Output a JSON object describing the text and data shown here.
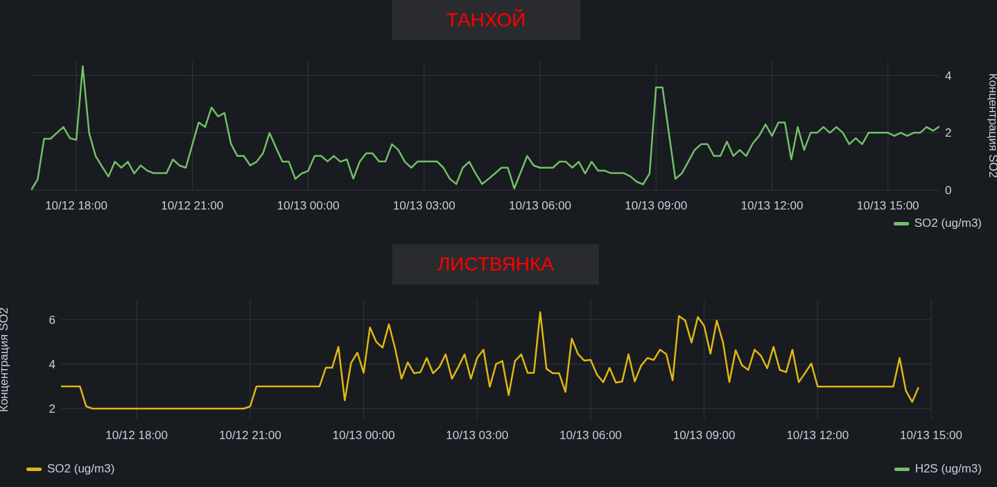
{
  "chart_data": [
    {
      "type": "line",
      "title": "ТАНХОЙ",
      "y2label": "Концентрация SO2",
      "xlim": [
        "--10-12T16:50",
        "--10-13T16:20"
      ],
      "xticks": [
        {
          "value": "--10-12T18:00",
          "label": "10/12 18:00"
        },
        {
          "value": "--10-12T21:00",
          "label": "10/12 21:00"
        },
        {
          "value": "--10-13T00:00",
          "label": "10/13 00:00"
        },
        {
          "value": "--10-13T03:00",
          "label": "10/13 03:00"
        },
        {
          "value": "--10-13T06:00",
          "label": "10/13 06:00"
        },
        {
          "value": "--10-13T09:00",
          "label": "10/13 09:00"
        },
        {
          "value": "--10-13T12:00",
          "label": "10/13 12:00"
        },
        {
          "value": "--10-13T15:00",
          "label": "10/13 15:00"
        }
      ],
      "y2lim": [
        0,
        4.5
      ],
      "y2ticks": [
        0,
        2,
        4
      ],
      "grid": true,
      "legend": "bottom right",
      "series": [
        {
          "name": "SO2 (ug/m3)",
          "color": "#73bf69",
          "axis": "y2",
          "x": [
            "--10-12T16:50",
            "--10-12T17:00",
            "--10-12T17:10",
            "--10-12T17:20",
            "--10-12T17:30",
            "--10-12T17:40",
            "--10-12T17:50",
            "--10-12T18:00",
            "--10-12T18:10",
            "--10-12T18:20",
            "--10-12T18:30",
            "--10-12T18:40",
            "--10-12T18:50",
            "--10-12T19:00",
            "--10-12T19:10",
            "--10-12T19:20",
            "--10-12T19:30",
            "--10-12T19:40",
            "--10-12T19:50",
            "--10-12T20:00",
            "--10-12T20:20",
            "--10-12T20:30",
            "--10-12T20:40",
            "--10-12T20:50",
            "--10-12T21:10",
            "--10-12T21:20",
            "--10-12T21:30",
            "--10-12T21:40",
            "--10-12T21:50",
            "--10-12T22:00",
            "--10-12T22:10",
            "--10-12T22:20",
            "--10-12T22:30",
            "--10-12T22:40",
            "--10-12T22:50",
            "--10-12T23:00",
            "--10-12T23:10",
            "--10-12T23:20",
            "--10-12T23:30",
            "--10-12T23:40",
            "--10-12T23:50",
            "--10-13T00:00",
            "--10-13T00:10",
            "--10-13T00:20",
            "--10-13T00:30",
            "--10-13T00:40",
            "--10-13T00:50",
            "--10-13T01:00",
            "--10-13T01:10",
            "--10-13T01:20",
            "--10-13T01:30",
            "--10-13T01:40",
            "--10-13T01:50",
            "--10-13T02:00",
            "--10-13T02:10",
            "--10-13T02:20",
            "--10-13T02:30",
            "--10-13T02:40",
            "--10-13T02:50",
            "--10-13T03:20",
            "--10-13T03:30",
            "--10-13T03:40",
            "--10-13T03:50",
            "--10-13T04:00",
            "--10-13T04:10",
            "--10-13T04:20",
            "--10-13T04:30",
            "--10-13T04:40",
            "--10-13T04:50",
            "--10-13T05:00",
            "--10-13T05:10",
            "--10-13T05:20",
            "--10-13T05:30",
            "--10-13T05:40",
            "--10-13T05:50",
            "--10-13T06:00",
            "--10-13T06:20",
            "--10-13T06:30",
            "--10-13T06:40",
            "--10-13T06:50",
            "--10-13T07:00",
            "--10-13T07:10",
            "--10-13T07:20",
            "--10-13T07:30",
            "--10-13T07:40",
            "--10-13T07:50",
            "--10-13T08:10",
            "--10-13T08:20",
            "--10-13T08:30",
            "--10-13T08:40",
            "--10-13T08:50",
            "--10-13T09:00",
            "--10-13T09:10",
            "--10-13T09:30",
            "--10-13T09:40",
            "--10-13T09:50",
            "--10-13T10:00",
            "--10-13T10:10",
            "--10-13T10:20",
            "--10-13T10:30",
            "--10-13T10:40",
            "--10-13T10:50",
            "--10-13T11:00",
            "--10-13T11:10",
            "--10-13T11:20",
            "--10-13T11:30",
            "--10-13T11:40",
            "--10-13T11:50",
            "--10-13T12:00",
            "--10-13T12:10",
            "--10-13T12:20",
            "--10-13T12:30",
            "--10-13T12:40",
            "--10-13T12:50",
            "--10-13T13:00",
            "--10-13T13:10",
            "--10-13T13:20",
            "--10-13T13:30",
            "--10-13T13:40",
            "--10-13T13:50",
            "--10-13T14:00",
            "--10-13T14:10",
            "--10-13T14:20",
            "--10-13T14:30",
            "--10-13T15:00",
            "--10-13T15:10",
            "--10-13T15:20",
            "--10-13T15:30",
            "--10-13T15:40",
            "--10-13T15:50",
            "--10-13T16:00",
            "--10-13T16:10",
            "--10-13T16:20"
          ],
          "values": [
            0,
            0.37,
            1.79,
            1.79,
            2.0,
            2.2,
            1.81,
            1.75,
            4.32,
            1.98,
            1.19,
            0.82,
            0.47,
            0.99,
            0.78,
            0.99,
            0.58,
            0.86,
            0.68,
            0.59,
            0.59,
            1.07,
            0.86,
            0.78,
            2.36,
            2.2,
            2.88,
            2.57,
            2.69,
            1.62,
            1.19,
            1.19,
            0.86,
            0.99,
            1.29,
            1.99,
            1.48,
            0.99,
            0.99,
            0.39,
            0.58,
            0.67,
            1.19,
            1.19,
            1.0,
            1.19,
            0.99,
            1.07,
            0.4,
            0.99,
            1.28,
            1.28,
            1.0,
            1.0,
            1.6,
            1.4,
            0.99,
            0.78,
            1.0,
            1.0,
            0.78,
            0.39,
            0.21,
            0.78,
            0.99,
            0.58,
            0.21,
            0.39,
            0.58,
            0.78,
            0.78,
            0.06,
            0.63,
            1.19,
            0.86,
            0.78,
            0.78,
            0.99,
            0.99,
            0.78,
            0.99,
            0.58,
            0.99,
            0.68,
            0.68,
            0.59,
            0.59,
            0.48,
            0.29,
            0.2,
            0.58,
            3.58,
            3.58,
            0.39,
            0.58,
            0.99,
            1.4,
            1.6,
            1.6,
            1.19,
            1.19,
            1.69,
            1.19,
            1.4,
            1.19,
            1.62,
            1.89,
            2.29,
            1.89,
            2.36,
            2.36,
            1.07,
            2.2,
            1.4,
            2.0,
            2.0,
            2.2,
            2.0,
            2.2,
            2.0,
            1.6,
            1.81,
            1.6,
            2.0,
            2.0,
            1.89,
            2.0,
            1.89,
            2.0,
            2.0,
            2.2,
            2.07,
            2.22
          ]
        }
      ]
    },
    {
      "type": "line",
      "title": "ЛИСТВЯНКА",
      "ylabel": "Концентрация SO2",
      "xlim": [
        "--10-12T16:00",
        "--10-13T15:00"
      ],
      "xticks": [
        {
          "value": "--10-12T18:00",
          "label": "10/12 18:00"
        },
        {
          "value": "--10-12T21:00",
          "label": "10/12 21:00"
        },
        {
          "value": "--10-13T00:00",
          "label": "10/13 00:00"
        },
        {
          "value": "--10-13T03:00",
          "label": "10/13 03:00"
        },
        {
          "value": "--10-13T06:00",
          "label": "10/13 06:00"
        },
        {
          "value": "--10-13T09:00",
          "label": "10/13 09:00"
        },
        {
          "value": "--10-13T12:00",
          "label": "10/13 12:00"
        },
        {
          "value": "--10-13T15:00",
          "label": "10/13 15:00"
        }
      ],
      "ylim": [
        1.5,
        6.9
      ],
      "yticks": [
        2,
        4,
        6
      ],
      "grid": true,
      "legend": "bottom",
      "series": [
        {
          "name": "SO2 (ug/m3)",
          "color": "#e0b714",
          "x": [
            "--10-12T16:00",
            "--10-12T16:30",
            "--10-12T16:40",
            "--10-12T16:50",
            "--10-12T20:50",
            "--10-12T21:00",
            "--10-12T21:10",
            "--10-12T22:50",
            "--10-12T23:00",
            "--10-12T23:10",
            "--10-12T23:20",
            "--10-12T23:30",
            "--10-12T23:40",
            "--10-12T23:50",
            "--10-13T00:00",
            "--10-13T00:10",
            "--10-13T00:20",
            "--10-13T00:30",
            "--10-13T00:40",
            "--10-13T00:50",
            "--10-13T01:00",
            "--10-13T01:10",
            "--10-13T01:20",
            "--10-13T01:30",
            "--10-13T01:40",
            "--10-13T01:50",
            "--10-13T02:00",
            "--10-13T02:10",
            "--10-13T02:20",
            "--10-13T02:30",
            "--10-13T02:40",
            "--10-13T02:50",
            "--10-13T03:00",
            "--10-13T03:10",
            "--10-13T03:20",
            "--10-13T03:30",
            "--10-13T03:40",
            "--10-13T03:50",
            "--10-13T04:00",
            "--10-13T04:10",
            "--10-13T04:20",
            "--10-13T04:30",
            "--10-13T04:40",
            "--10-13T04:50",
            "--10-13T05:00",
            "--10-13T05:10",
            "--10-13T05:20",
            "--10-13T05:30",
            "--10-13T05:40",
            "--10-13T05:50",
            "--10-13T06:00",
            "--10-13T06:10",
            "--10-13T06:20",
            "--10-13T06:30",
            "--10-13T06:40",
            "--10-13T06:50",
            "--10-13T07:00",
            "--10-13T07:10",
            "--10-13T07:20",
            "--10-13T07:30",
            "--10-13T07:40",
            "--10-13T07:50",
            "--10-13T08:00",
            "--10-13T08:10",
            "--10-13T08:20",
            "--10-13T08:30",
            "--10-13T08:40",
            "--10-13T08:50",
            "--10-13T09:00",
            "--10-13T09:10",
            "--10-13T09:20",
            "--10-13T09:30",
            "--10-13T09:40",
            "--10-13T09:50",
            "--10-13T10:00",
            "--10-13T10:10",
            "--10-13T10:20",
            "--10-13T10:30",
            "--10-13T10:40",
            "--10-13T10:50",
            "--10-13T11:00",
            "--10-13T11:10",
            "--10-13T11:20",
            "--10-13T11:30",
            "--10-13T11:40",
            "--10-13T11:50",
            "--10-13T12:00",
            "--10-13T14:00",
            "--10-13T14:10",
            "--10-13T14:20",
            "--10-13T14:30",
            "--10-13T14:40"
          ],
          "values": [
            3.0,
            3.0,
            2.1,
            2.0,
            2.0,
            2.1,
            3.0,
            3.0,
            3.84,
            3.84,
            4.78,
            2.37,
            4.05,
            4.52,
            3.61,
            5.65,
            5.0,
            4.74,
            5.79,
            4.69,
            3.34,
            4.08,
            3.59,
            3.64,
            4.28,
            3.59,
            3.87,
            4.44,
            3.34,
            3.87,
            4.44,
            3.34,
            4.28,
            4.65,
            2.98,
            4.0,
            4.14,
            2.61,
            4.14,
            4.44,
            3.61,
            3.61,
            6.34,
            3.79,
            3.59,
            3.59,
            2.75,
            5.15,
            4.45,
            4.16,
            4.19,
            3.53,
            3.19,
            3.83,
            3.17,
            3.22,
            4.44,
            3.22,
            3.93,
            4.28,
            4.19,
            4.65,
            4.45,
            3.27,
            6.17,
            5.96,
            4.97,
            6.12,
            5.72,
            4.47,
            5.96,
            4.97,
            3.19,
            4.63,
            3.95,
            3.74,
            4.65,
            4.38,
            3.81,
            4.78,
            3.74,
            3.64,
            4.65,
            3.19,
            3.6,
            4.03,
            2.99,
            2.99,
            4.28,
            2.8,
            2.3,
            2.96
          ]
        },
        {
          "name": "H2S (ug/m3)",
          "color": "#73bf69"
        }
      ]
    }
  ]
}
